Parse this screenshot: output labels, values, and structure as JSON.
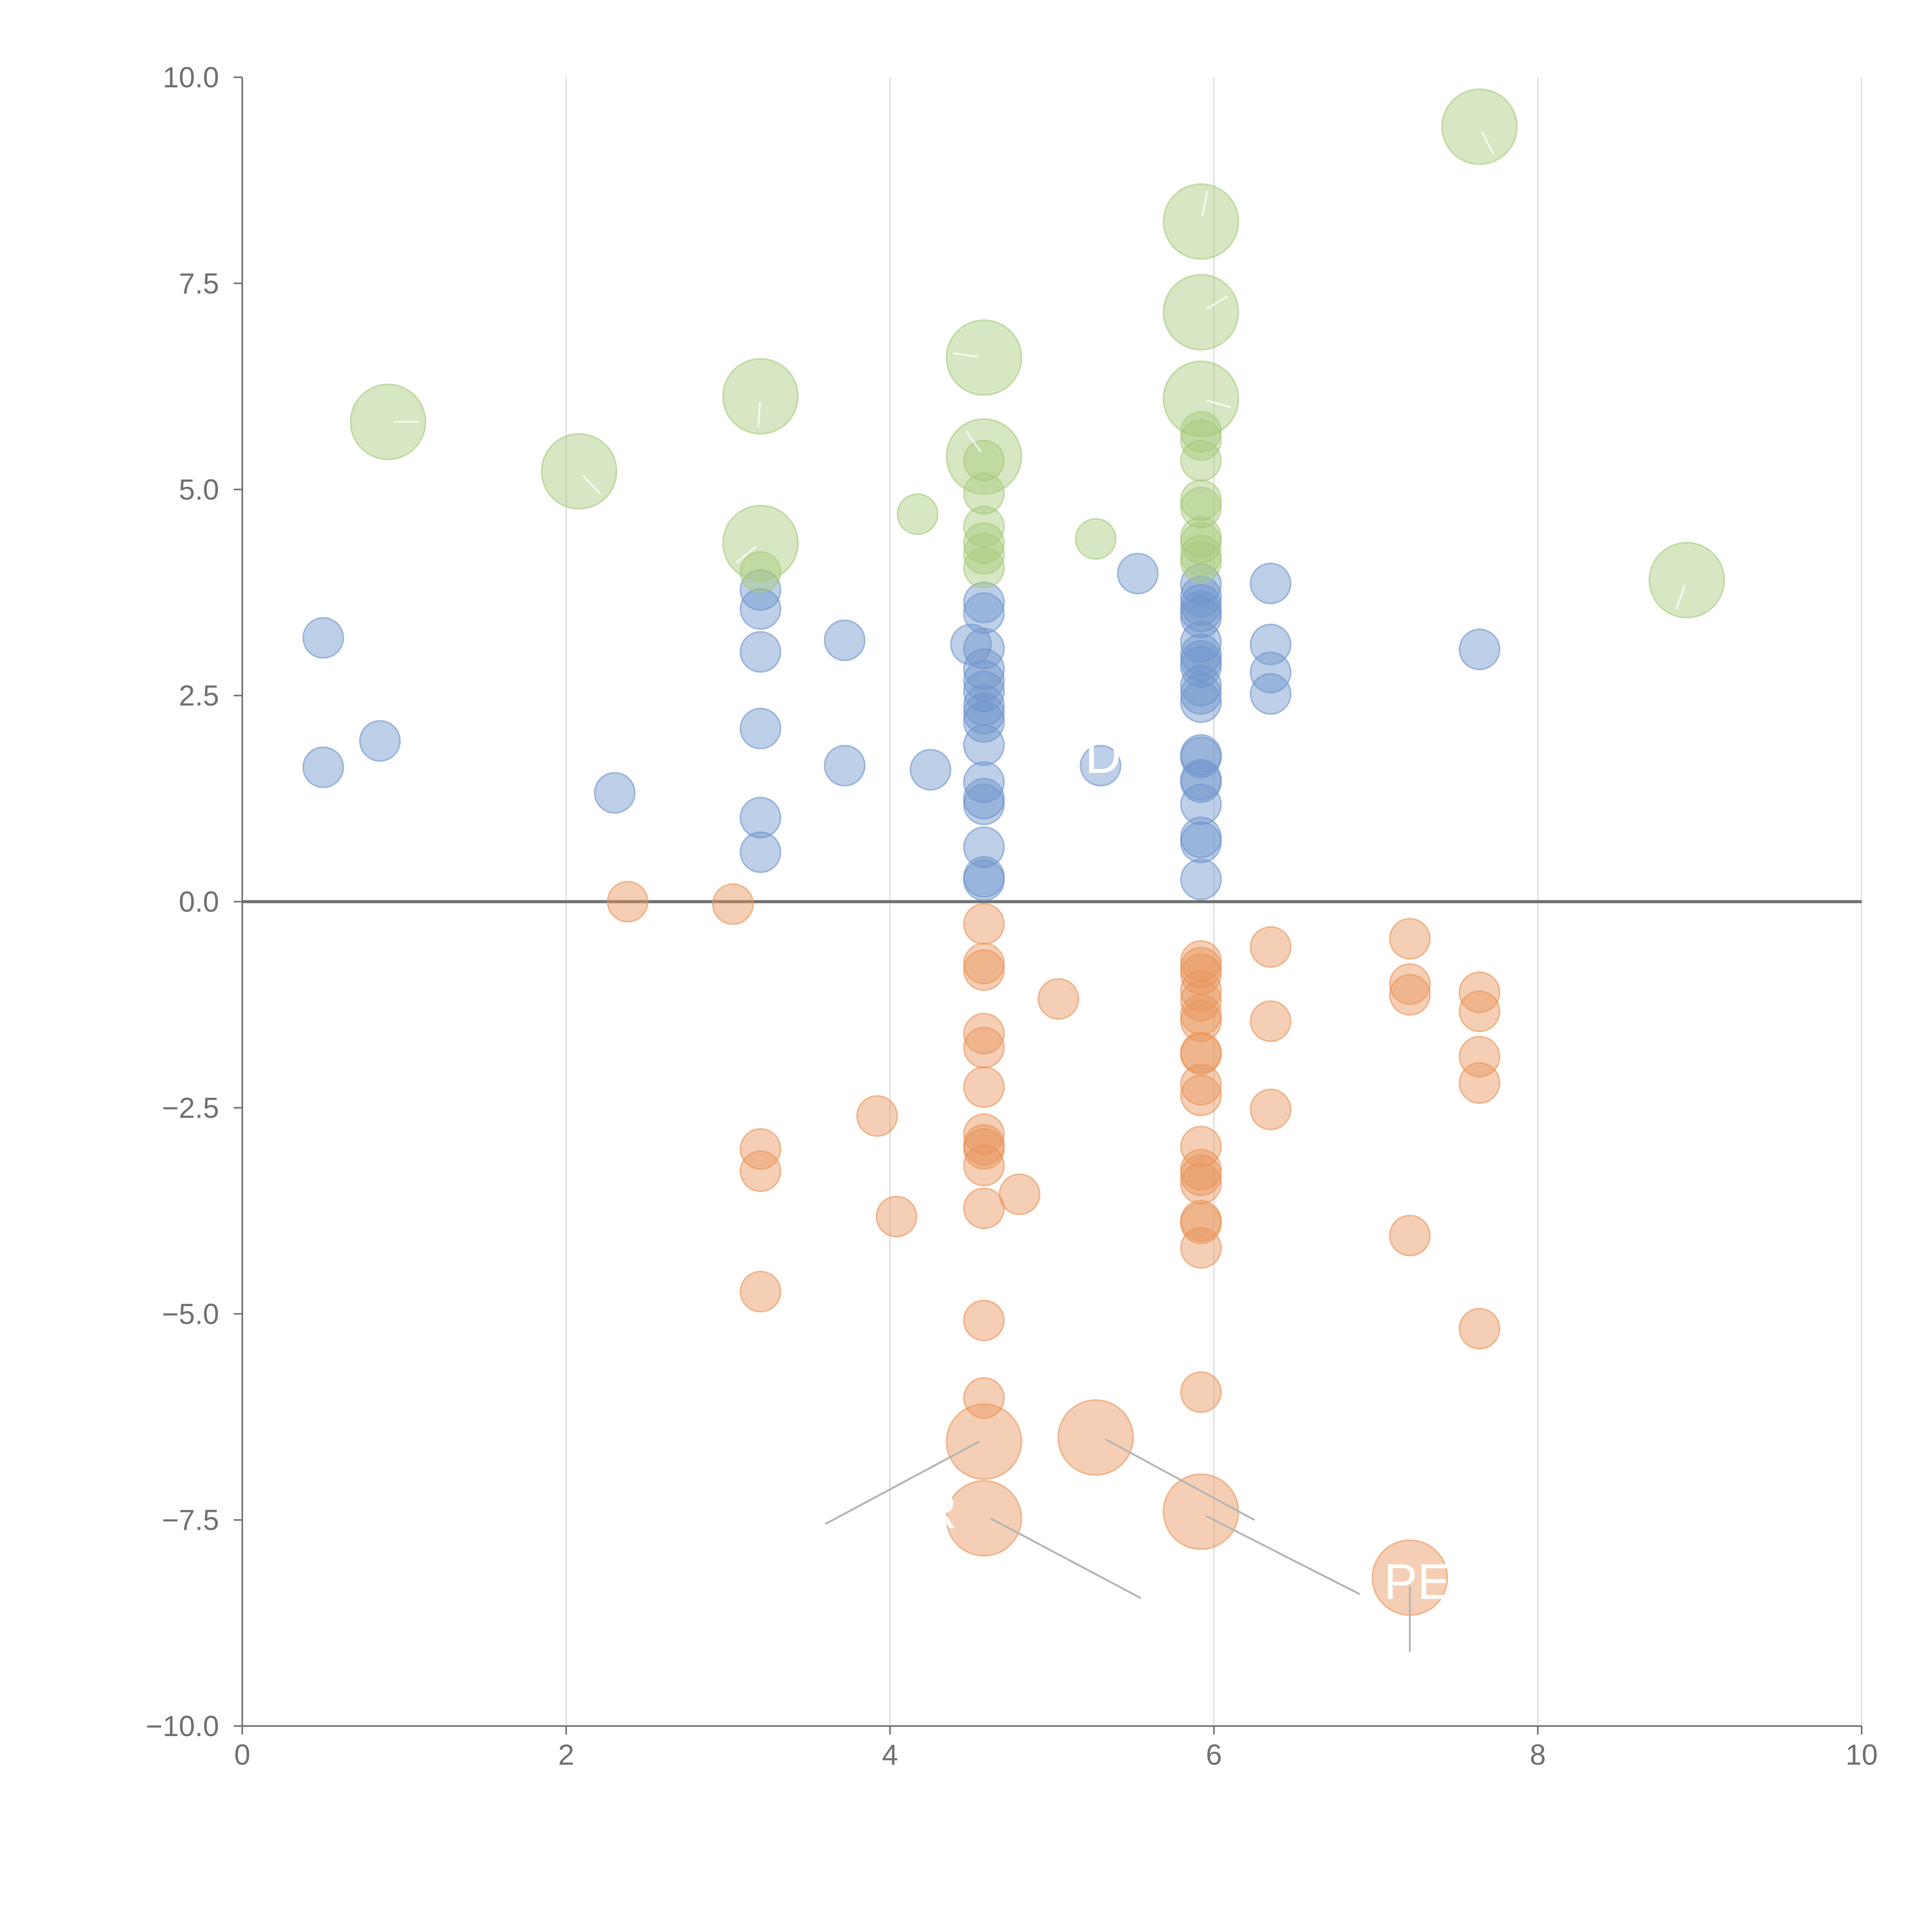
{
  "chart_data": {
    "type": "scatter",
    "title": "",
    "xlabel": "",
    "ylabel": "",
    "xlim": [
      0,
      10
    ],
    "ylim": [
      -10,
      10
    ],
    "x_ticks": [
      0,
      2,
      4,
      6,
      8,
      10
    ],
    "y_ticks": [
      -10.0,
      -7.5,
      -5.0,
      -2.5,
      0.0,
      2.5,
      5.0,
      7.5,
      10.0
    ],
    "x_tick_labels": [
      "0",
      "2",
      "4",
      "6",
      "8",
      "10"
    ],
    "y_tick_labels": [
      "−10.0",
      "−7.5",
      "−5.0",
      "−2.5",
      "0.0",
      "2.5",
      "5.0",
      "7.5",
      "10.0"
    ],
    "grid": "vertical",
    "reference_line": 0,
    "colors": {
      "blue": "#6f94cc",
      "orange": "#e8955a",
      "green": "#a6c97a",
      "grid": "#d9d9d9",
      "axis": "#707070"
    },
    "series": [
      {
        "name": "blue",
        "color": "#6f94cc",
        "points": [
          [
            0.5,
            3.2,
            1
          ],
          [
            0.5,
            1.63,
            1
          ],
          [
            0.85,
            1.95,
            1
          ],
          [
            2.3,
            1.32,
            1
          ],
          [
            3.2,
            3.78,
            1
          ],
          [
            3.2,
            3.55,
            1
          ],
          [
            3.2,
            3.03,
            1
          ],
          [
            3.2,
            2.1,
            1
          ],
          [
            3.2,
            1.02,
            1
          ],
          [
            3.2,
            0.6,
            1
          ],
          [
            3.72,
            3.17,
            1
          ],
          [
            3.72,
            1.65,
            1
          ],
          [
            4.25,
            1.6,
            1
          ],
          [
            4.5,
            3.12,
            1
          ],
          [
            4.58,
            3.63,
            1
          ],
          [
            4.58,
            3.5,
            1
          ],
          [
            4.58,
            3.07,
            1
          ],
          [
            4.58,
            2.82,
            1
          ],
          [
            4.58,
            2.68,
            1
          ],
          [
            4.58,
            2.55,
            1
          ],
          [
            4.58,
            2.38,
            1
          ],
          [
            4.58,
            2.28,
            1
          ],
          [
            4.58,
            2.18,
            1
          ],
          [
            4.58,
            1.9,
            1
          ],
          [
            4.58,
            1.45,
            1
          ],
          [
            4.58,
            1.25,
            1
          ],
          [
            4.58,
            1.18,
            1
          ],
          [
            4.58,
            0.66,
            1
          ],
          [
            4.58,
            0.3,
            1
          ],
          [
            4.58,
            0.26,
            1
          ],
          [
            5.3,
            1.65,
            1
          ],
          [
            5.53,
            3.98,
            1
          ],
          [
            5.92,
            3.85,
            1
          ],
          [
            5.92,
            3.7,
            1
          ],
          [
            5.92,
            3.6,
            1
          ],
          [
            5.92,
            3.52,
            1
          ],
          [
            5.92,
            3.45,
            1
          ],
          [
            5.92,
            3.15,
            1
          ],
          [
            5.92,
            3.0,
            1
          ],
          [
            5.92,
            2.92,
            1
          ],
          [
            5.92,
            2.85,
            1
          ],
          [
            5.92,
            2.62,
            1
          ],
          [
            5.92,
            2.52,
            1
          ],
          [
            5.92,
            2.42,
            1
          ],
          [
            5.92,
            1.78,
            1
          ],
          [
            5.92,
            1.75,
            1
          ],
          [
            5.92,
            1.48,
            1
          ],
          [
            5.92,
            1.45,
            1
          ],
          [
            5.92,
            1.18,
            1
          ],
          [
            5.92,
            0.78,
            1
          ],
          [
            5.92,
            0.72,
            1
          ],
          [
            5.92,
            0.27,
            1
          ],
          [
            6.35,
            3.86,
            1
          ],
          [
            6.35,
            3.12,
            1
          ],
          [
            6.35,
            2.78,
            1
          ],
          [
            6.35,
            2.52,
            1
          ],
          [
            7.64,
            3.06,
            1
          ]
        ]
      },
      {
        "name": "orange",
        "color": "#e8955a",
        "points": [
          [
            2.38,
            0.0,
            1
          ],
          [
            3.03,
            -0.03,
            1
          ],
          [
            3.2,
            -3.0,
            1
          ],
          [
            3.2,
            -3.27,
            1
          ],
          [
            3.2,
            -4.73,
            1
          ],
          [
            3.92,
            -2.6,
            1
          ],
          [
            4.04,
            -3.82,
            1
          ],
          [
            4.58,
            -0.27,
            1
          ],
          [
            4.58,
            -0.75,
            1
          ],
          [
            4.58,
            -0.83,
            1
          ],
          [
            4.58,
            -1.6,
            1
          ],
          [
            4.58,
            -1.77,
            1
          ],
          [
            4.58,
            -2.25,
            1
          ],
          [
            4.58,
            -2.82,
            1
          ],
          [
            4.58,
            -2.95,
            1
          ],
          [
            4.58,
            -3.0,
            1
          ],
          [
            4.58,
            -3.2,
            1
          ],
          [
            4.58,
            -3.72,
            1
          ],
          [
            4.58,
            -5.08,
            1
          ],
          [
            4.58,
            -6.02,
            1
          ],
          [
            4.8,
            -3.55,
            1
          ],
          [
            5.04,
            -1.18,
            1
          ],
          [
            5.92,
            -0.72,
            1
          ],
          [
            5.92,
            -0.8,
            1
          ],
          [
            5.92,
            -0.88,
            1
          ],
          [
            5.92,
            -1.08,
            1
          ],
          [
            5.92,
            -1.2,
            1
          ],
          [
            5.92,
            -1.37,
            1
          ],
          [
            5.92,
            -1.45,
            1
          ],
          [
            5.92,
            -1.83,
            1
          ],
          [
            5.92,
            -1.85,
            1
          ],
          [
            5.92,
            -2.22,
            1
          ],
          [
            5.92,
            -2.35,
            1
          ],
          [
            5.92,
            -2.97,
            1
          ],
          [
            5.92,
            -3.25,
            1
          ],
          [
            5.92,
            -3.32,
            1
          ],
          [
            5.92,
            -3.42,
            1
          ],
          [
            5.92,
            -3.87,
            1
          ],
          [
            5.92,
            -3.9,
            1
          ],
          [
            5.92,
            -4.2,
            1
          ],
          [
            5.92,
            -5.95,
            1
          ],
          [
            6.35,
            -0.55,
            1
          ],
          [
            6.35,
            -1.45,
            1
          ],
          [
            6.35,
            -2.52,
            1
          ],
          [
            7.21,
            -0.45,
            1
          ],
          [
            7.21,
            -1.0,
            1
          ],
          [
            7.21,
            -1.13,
            1
          ],
          [
            7.21,
            -4.05,
            1
          ],
          [
            7.64,
            -1.1,
            1
          ],
          [
            7.64,
            -1.33,
            1
          ],
          [
            7.64,
            -1.88,
            1
          ],
          [
            7.64,
            -2.2,
            1
          ],
          [
            7.64,
            -5.18,
            1
          ]
        ]
      },
      {
        "name": "green",
        "color": "#a6c97a",
        "points": [
          [
            3.2,
            4.0,
            1
          ],
          [
            4.17,
            4.7,
            1
          ],
          [
            4.58,
            5.35,
            1
          ],
          [
            4.58,
            4.95,
            1
          ],
          [
            4.58,
            4.55,
            1
          ],
          [
            4.58,
            4.35,
            1
          ],
          [
            4.58,
            4.22,
            1
          ],
          [
            4.58,
            4.05,
            1
          ],
          [
            5.27,
            4.4,
            1
          ],
          [
            5.92,
            5.7,
            1
          ],
          [
            5.92,
            5.6,
            1
          ],
          [
            5.92,
            5.35,
            1
          ],
          [
            5.92,
            4.87,
            1
          ],
          [
            5.92,
            4.78,
            1
          ],
          [
            5.92,
            4.42,
            1
          ],
          [
            5.92,
            4.35,
            1
          ],
          [
            5.92,
            4.2,
            1
          ],
          [
            5.92,
            4.12,
            1
          ]
        ]
      }
    ],
    "annotated_points": [
      {
        "series": "green",
        "x": 0.9,
        "y": 5.82,
        "size": 2
      },
      {
        "series": "green",
        "x": 2.08,
        "y": 5.22,
        "size": 2
      },
      {
        "series": "green",
        "x": 3.2,
        "y": 6.13,
        "size": 2
      },
      {
        "series": "green",
        "x": 3.2,
        "y": 4.35,
        "size": 2
      },
      {
        "series": "green",
        "x": 4.58,
        "y": 6.6,
        "size": 2
      },
      {
        "series": "green",
        "x": 4.58,
        "y": 5.4,
        "size": 2
      },
      {
        "series": "green",
        "x": 5.92,
        "y": 8.25,
        "size": 2
      },
      {
        "series": "green",
        "x": 5.92,
        "y": 7.15,
        "size": 2
      },
      {
        "series": "green",
        "x": 5.92,
        "y": 6.1,
        "size": 2
      },
      {
        "series": "green",
        "x": 7.64,
        "y": 9.4,
        "size": 2
      },
      {
        "series": "green",
        "x": 8.92,
        "y": 3.9,
        "size": 2
      },
      {
        "series": "orange",
        "x": 4.58,
        "y": -6.55,
        "size": 2
      },
      {
        "series": "orange",
        "x": 4.58,
        "y": -7.48,
        "size": 2
      },
      {
        "series": "orange",
        "x": 5.27,
        "y": -6.5,
        "size": 2
      },
      {
        "series": "orange",
        "x": 5.92,
        "y": -7.4,
        "size": 2
      },
      {
        "series": "orange",
        "x": 7.21,
        "y": -8.2,
        "size": 2
      }
    ],
    "annotations": [
      "R",
      "PEC",
      "D"
    ]
  }
}
